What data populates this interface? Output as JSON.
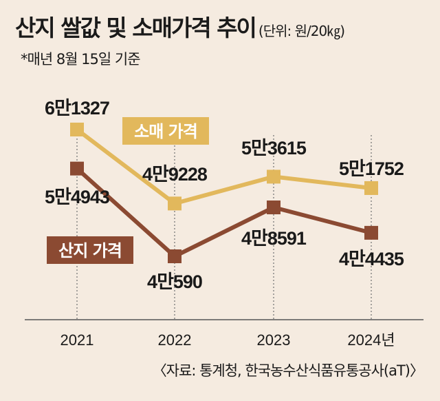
{
  "header": {
    "title": "산지 쌀값 및 소매가격 추이",
    "unit": "(단위: 원/20㎏)"
  },
  "note": "*매년 8월 15일 기준",
  "source": "〈자료: 통계청, 한국농수산식품유통공사(aT)〉",
  "chart_data": {
    "type": "line",
    "x": [
      "2021",
      "2022",
      "2023",
      "2024년"
    ],
    "ylim": [
      40000,
      62000
    ],
    "grid": false,
    "series": [
      {
        "name": "소매 가격",
        "color": "#e2b85c",
        "values": [
          61327,
          49228,
          53615,
          51752
        ],
        "labels": [
          "6만1327",
          "4만9228",
          "5만3615",
          "5만1752"
        ]
      },
      {
        "name": "산지 가격",
        "color": "#8b4a32",
        "values": [
          54943,
          40590,
          48591,
          44435
        ],
        "labels": [
          "5만4943",
          "4만590",
          "4만8591",
          "4만4435"
        ]
      }
    ]
  }
}
